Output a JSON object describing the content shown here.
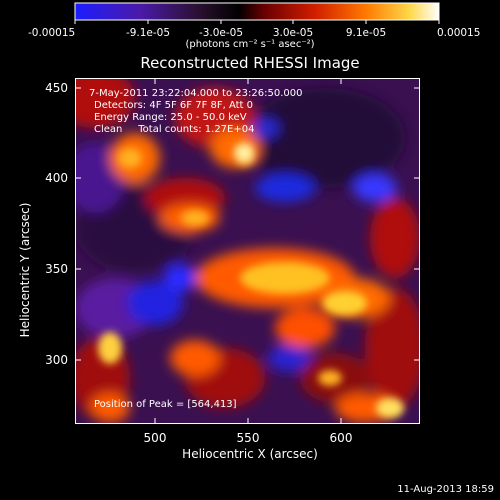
{
  "colorbar": {
    "tick_labels": [
      "-0.00015",
      "-9.1e-05",
      "-3.0e-05",
      "3.0e-05",
      "9.1e-05",
      "0.00015"
    ],
    "units_text": "(photons cm⁻² s⁻¹ asec⁻²)",
    "colors": [
      "#1d1dff",
      "#4a1aa8",
      "#2a1030",
      "#000000",
      "#6a0000",
      "#d21e00",
      "#ff7a00",
      "#ffd84a",
      "#ffffff"
    ]
  },
  "title": "Reconstructed RHESSI Image",
  "info": {
    "time_range": "7-May-2011 23:22:04.000 to 23:26:50.000",
    "detectors": "Detectors: 4F 5F 6F 7F 8F, Att 0",
    "energy_range": "Energy Range: 25.0 - 50.0 keV",
    "clean_line": "Clean     Total counts: 1.27E+04",
    "peak": "Position of Peak = [564,413]"
  },
  "axes": {
    "xlabel": "Heliocentric X (arcsec)",
    "ylabel": "Heliocentric Y (arcsec)",
    "x_ticks": [
      "500",
      "550",
      "600"
    ],
    "y_ticks": [
      "450",
      "400",
      "350",
      "300"
    ],
    "x_range": [
      460,
      645
    ],
    "y_range": [
      260,
      460
    ]
  },
  "footer": "11-Aug-2013 18:59"
}
